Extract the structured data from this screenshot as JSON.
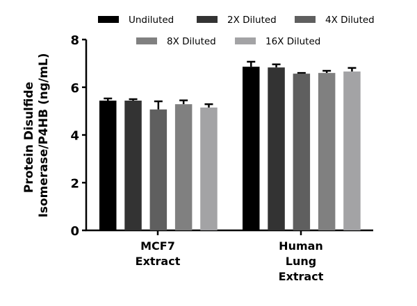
{
  "chart_data": {
    "type": "bar",
    "ylabel": "Protein Disulfide Isomerase/P4HB (ng/mL)",
    "xlabel": "",
    "ylim": [
      0,
      8
    ],
    "yticks": [
      "0",
      "2",
      "4",
      "6",
      "8"
    ],
    "grid": false,
    "legend_position": "top",
    "categories": [
      "MCF7\nExtract",
      "Human\nLung\nExtract"
    ],
    "series": [
      {
        "name": "Undiluted",
        "color": "#000000",
        "values": [
          5.44,
          6.86
        ],
        "error": [
          0.09,
          0.21
        ]
      },
      {
        "name": "2X Diluted",
        "color": "#333333",
        "values": [
          5.44,
          6.83
        ],
        "error": [
          0.06,
          0.13
        ]
      },
      {
        "name": "4X Diluted",
        "color": "#5f5f5f",
        "values": [
          5.07,
          6.57
        ],
        "error": [
          0.34,
          0.03
        ]
      },
      {
        "name": "8X Diluted",
        "color": "#808080",
        "values": [
          5.29,
          6.6
        ],
        "error": [
          0.16,
          0.09
        ]
      },
      {
        "name": "16X Diluted",
        "color": "#a3a3a5",
        "values": [
          5.15,
          6.66
        ],
        "error": [
          0.14,
          0.15
        ]
      }
    ]
  }
}
